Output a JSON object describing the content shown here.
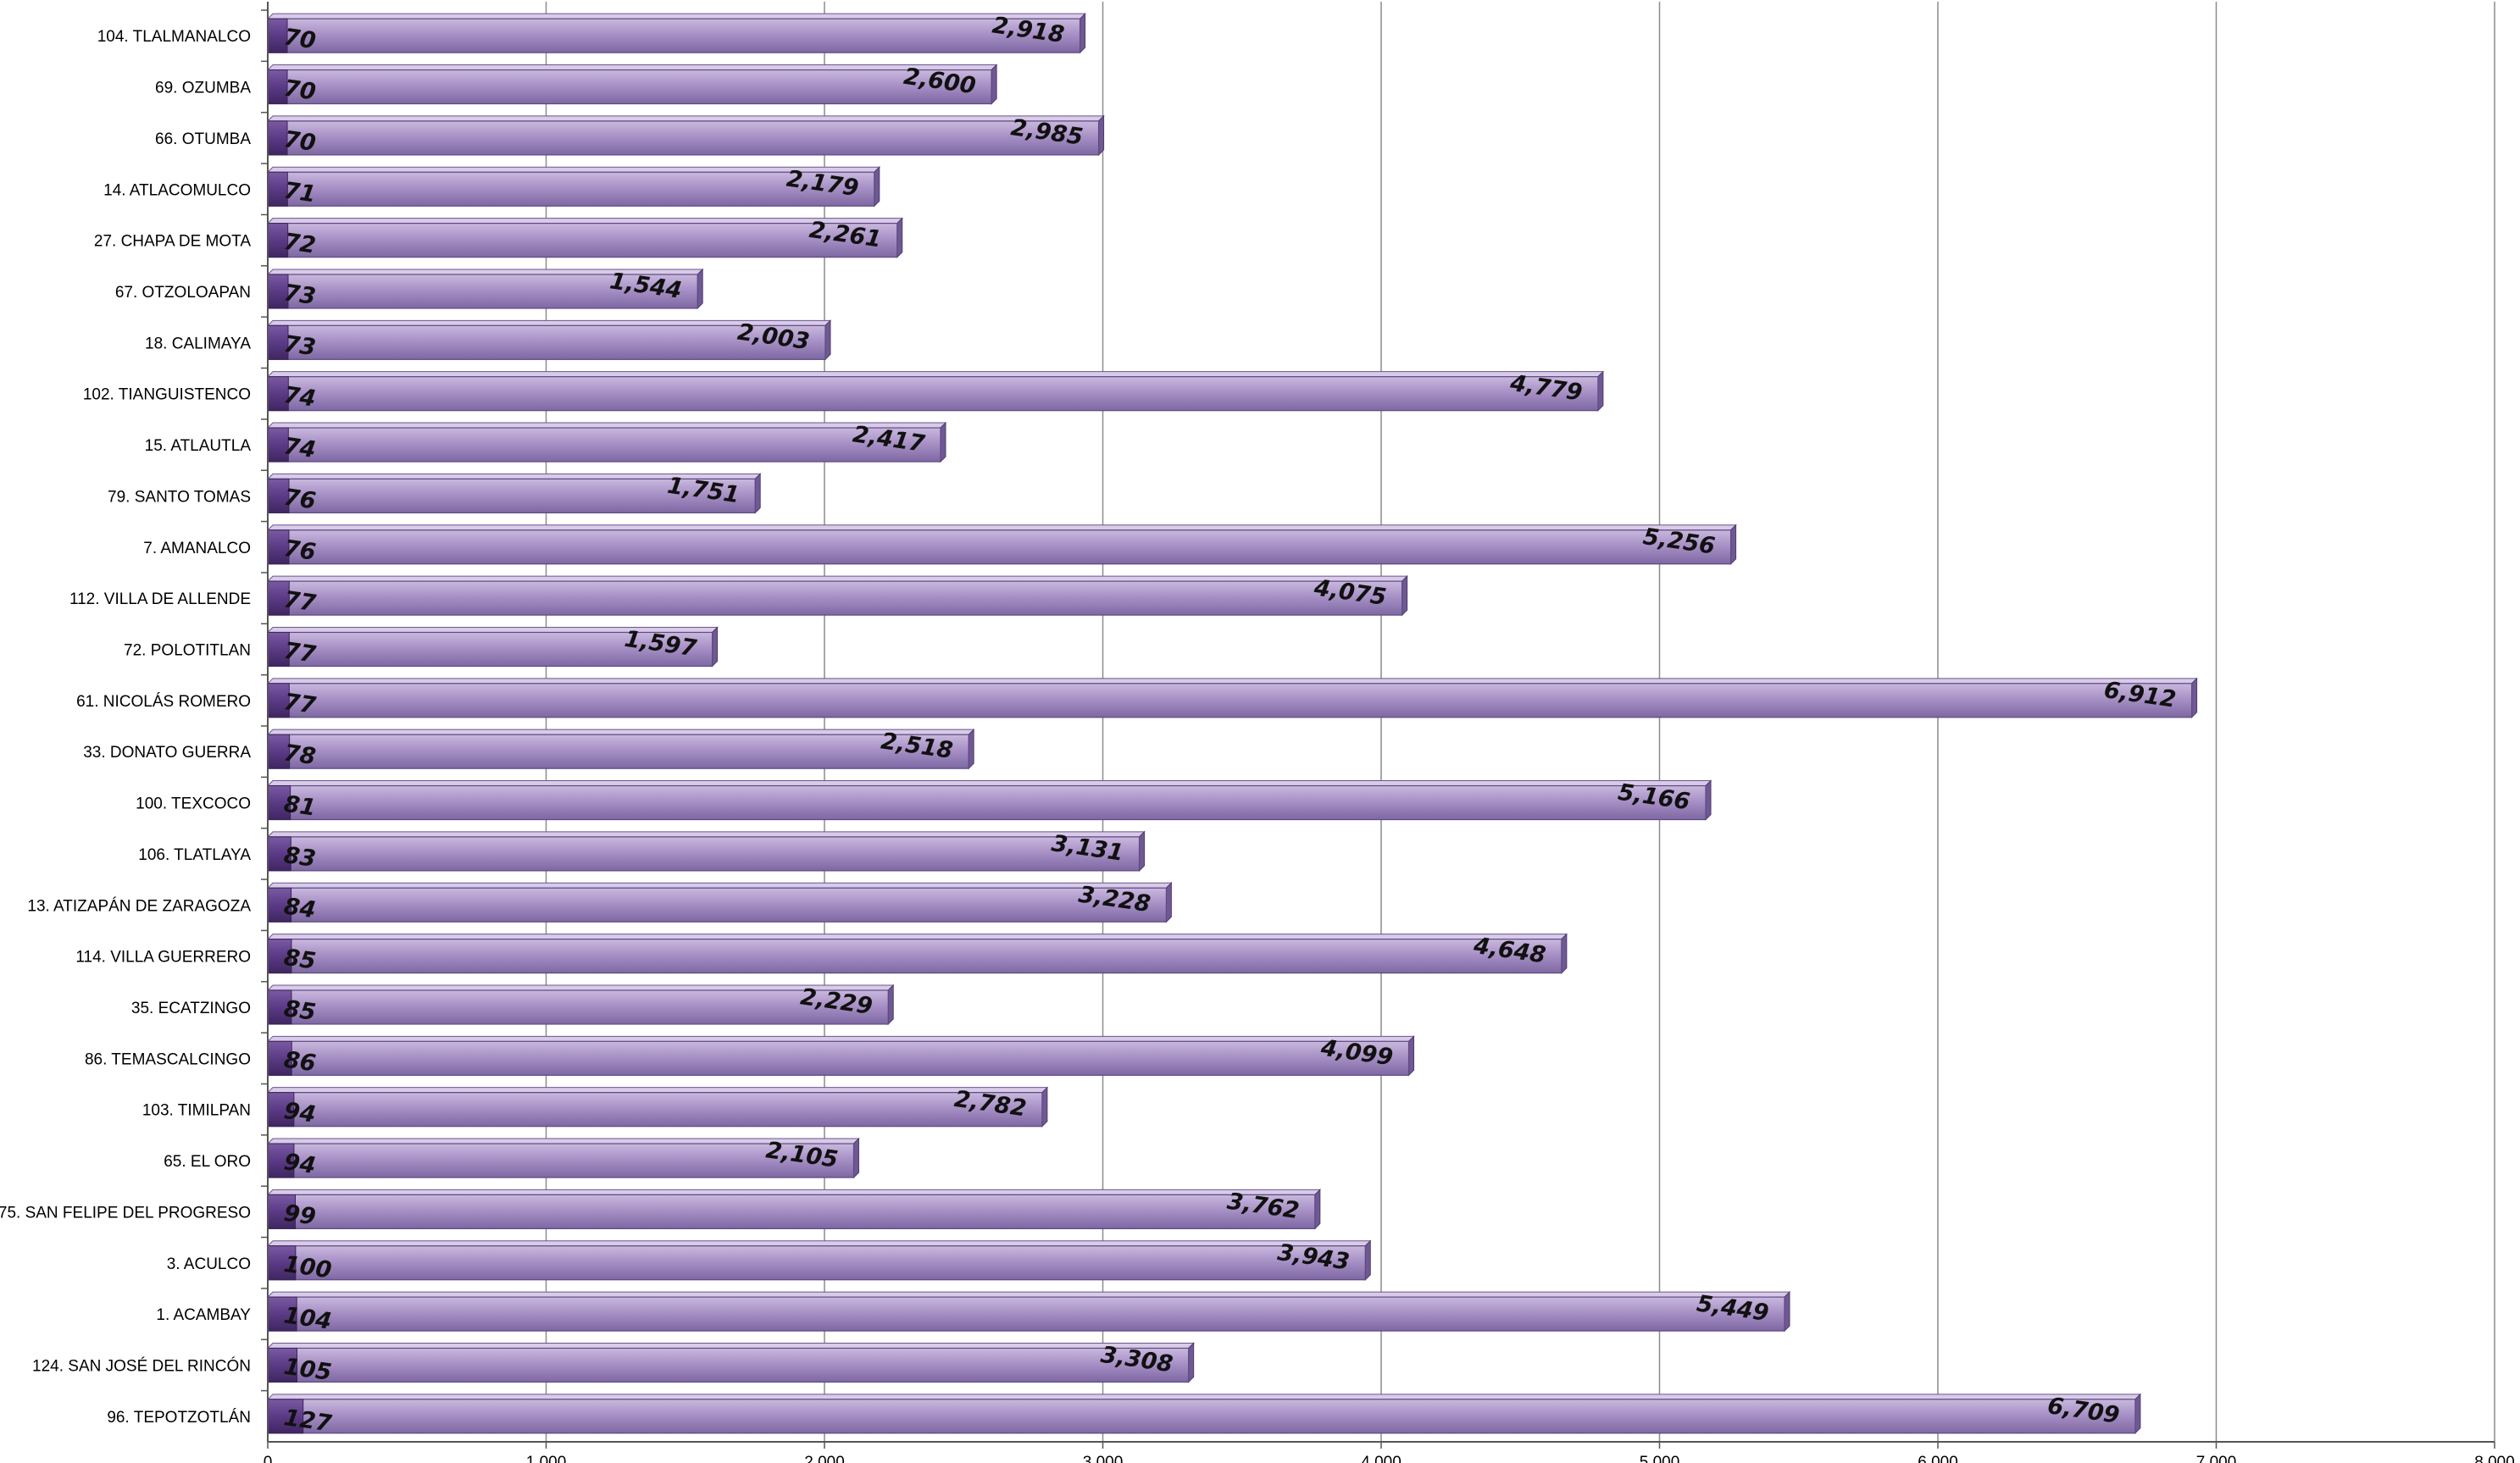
{
  "chart_data": {
    "type": "bar",
    "orientation": "horizontal",
    "categories": [
      "104. TLALMANALCO",
      "69. OZUMBA",
      "66. OTUMBA",
      "14. ATLACOMULCO",
      "27. CHAPA DE MOTA",
      "67. OTZOLOAPAN",
      "18. CALIMAYA",
      "102. TIANGUISTENCO",
      "15. ATLAUTLA",
      "79. SANTO TOMAS",
      "7. AMANALCO",
      "112. VILLA DE ALLENDE",
      "72. POLOTITLAN",
      "61. NICOLÁS ROMERO",
      "33. DONATO GUERRA",
      "100. TEXCOCO",
      "106. TLATLAYA",
      "13. ATIZAPÁN DE ZARAGOZA",
      "114. VILLA GUERRERO",
      "35. ECATZINGO",
      "86. TEMASCALCINGO",
      "103. TIMILPAN",
      "65. EL ORO",
      "75. SAN FELIPE DEL PROGRESO",
      "3. ACULCO",
      "1. ACAMBAY",
      "124. SAN JOSÉ DEL RINCÓN",
      "96. TEPOTZOTLÁN"
    ],
    "series": [
      {
        "values": [
          70,
          70,
          70,
          71,
          72,
          73,
          73,
          74,
          74,
          76,
          76,
          77,
          77,
          77,
          78,
          81,
          83,
          84,
          85,
          85,
          86,
          94,
          94,
          99,
          100,
          104,
          105,
          127
        ],
        "labels": [
          "70",
          "70",
          "70",
          "71",
          "72",
          "73",
          "73",
          "74",
          "74",
          "76",
          "76",
          "77",
          "77",
          "77",
          "78",
          "81",
          "83",
          "84",
          "85",
          "85",
          "86",
          "94",
          "94",
          "99",
          "100",
          "104",
          "105",
          "127"
        ],
        "color": "#5b3a86"
      },
      {
        "values": [
          2918,
          2600,
          2985,
          2179,
          2261,
          1544,
          2003,
          4779,
          2417,
          1751,
          5256,
          4075,
          1597,
          6912,
          2518,
          5166,
          3131,
          3228,
          4648,
          2229,
          4099,
          2782,
          2105,
          3762,
          3943,
          5449,
          3308,
          6709
        ],
        "labels": [
          "2,918",
          "2,600",
          "2,985",
          "2,179",
          "2,261",
          "1,544",
          "2,003",
          "4,779",
          "2,417",
          "1,751",
          "5,256",
          "4,075",
          "1,597",
          "6,912",
          "2,518",
          "5,166",
          "3,131",
          "3,228",
          "4,648",
          "2,229",
          "4,099",
          "2,782",
          "2,105",
          "3,762",
          "3,943",
          "5,449",
          "3,308",
          "6,709"
        ],
        "color": "#a891c6"
      }
    ],
    "xlim": [
      0,
      8000
    ],
    "xticks": [
      "0",
      "1,000",
      "2,000",
      "3,000",
      "4,000",
      "5,000",
      "6,000",
      "7,000",
      "8,000"
    ],
    "grid": true,
    "legend": "none"
  }
}
